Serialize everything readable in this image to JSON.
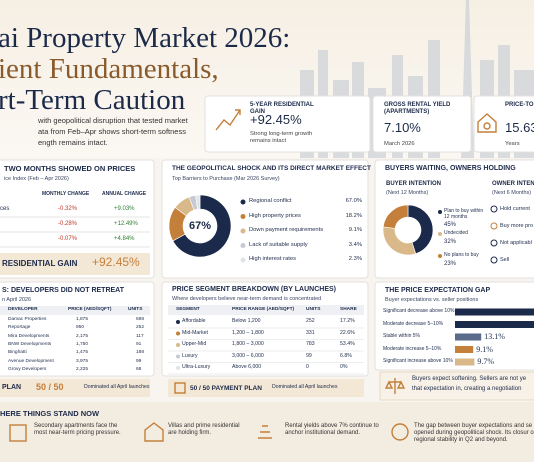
{
  "header": {
    "title_lines": [
      "ai Property Market 2026:",
      "ient Fundamentals,",
      "rt-Term Caution"
    ],
    "intro_lines": [
      "with geopolitical disruption that tested market",
      "ata from Feb–Apr shows short-term softness",
      "ength remains intact."
    ]
  },
  "stats": [
    {
      "label": "5-YEAR RESIDENTIAL GAIN",
      "value": "+92.45%",
      "note": "Strong long-term growth remains intact"
    },
    {
      "label": "GROSS RENTAL YIELD (APARTMENTS)",
      "value": "7.10%",
      "note": "March 2026"
    },
    {
      "label": "PRICE-TO",
      "value": "15.63",
      "note": "Years"
    }
  ],
  "price_panel": {
    "title": "TWO MONTHS SHOWED ON PRICES",
    "subtitle": "ice Index (Feb – Apr 2026)",
    "columns": [
      "MONTHLY CHANGE",
      "ANNUAL CHANGE"
    ],
    "rows": [
      {
        "label": "ces",
        "monthly": "-0.32%",
        "annual": "+9.03%"
      },
      {
        "monthly": "-0.28%",
        "annual": "+12.49%"
      },
      {
        "monthly": "-0.07%",
        "annual": "+4.84%"
      }
    ]
  },
  "gain": {
    "label": "RESIDENTIAL GAIN",
    "value": "+92.45%"
  },
  "barriers": {
    "title": "THE GEOPOLITICAL SHOCK AND ITS DIRECT MARKET EFFECT",
    "subtitle": "Top Barriers to Purchase (Mar 2026 Survey)",
    "center": "67%",
    "items": [
      {
        "label": "Regional conflict",
        "value": "67.0%"
      },
      {
        "label": "High property prices",
        "value": "18.2%"
      },
      {
        "label": "Down payment requirements",
        "value": "9.1%"
      },
      {
        "label": "Lack of suitable supply",
        "value": "3.4%"
      },
      {
        "label": "High interest rates",
        "value": "2.3%"
      }
    ]
  },
  "buyers": {
    "title": "BUYERS WAITING, OWNERS HOLDING",
    "buyer": {
      "title": "BUYER INTENTION",
      "subtitle": "(Next 12 Months)",
      "items": [
        {
          "label": "Plan to buy within 12 months",
          "value": "45%"
        },
        {
          "label": "Undecided",
          "value": "32%"
        },
        {
          "label": "No plans to buy",
          "value": "23%"
        }
      ]
    },
    "owner": {
      "title": "OWNER INTENT",
      "subtitle": "(Next 6 Months)",
      "items": [
        "Hold current",
        "Buy more pro",
        "Not applicabl",
        "Sell"
      ]
    }
  },
  "developers": {
    "title": "S: DEVELOPERS DID NOT RETREAT",
    "subtitle": "n April 2026",
    "columns": [
      "DEVELOPER",
      "PRICE (AED/SQFT)",
      "UNITS"
    ],
    "rows": [
      [
        "Damac Properties",
        "1,875",
        "598"
      ],
      [
        "Reportage",
        "950",
        "252"
      ],
      [
        "Mira Developments",
        "2,175",
        "117"
      ],
      [
        "BNW Developments",
        "1,750",
        "91"
      ],
      [
        "Binghatti",
        "1,475",
        "188"
      ],
      [
        "Avenue Development",
        "3,975",
        "99"
      ],
      [
        "Grovy Developers",
        "2,225",
        "68"
      ]
    ],
    "plan": {
      "label": "PLAN",
      "value": "50 / 50",
      "note": "Dominated all April launches"
    }
  },
  "segments": {
    "title": "PRICE SEGMENT BREAKDOWN (BY LAUNCHES)",
    "subtitle": "Where developers believe near-term demand is concentrated",
    "columns": [
      "SEGMENT",
      "PRICE RANGE (AED/SQFT)",
      "UNITS",
      "SHARE"
    ],
    "rows": [
      [
        "Affordable",
        "Below 1,200",
        "252",
        "17.2%"
      ],
      [
        "Mid-Market",
        "1,200 – 1,800",
        "331",
        "22.6%"
      ],
      [
        "Upper-Mid",
        "1,800 – 3,000",
        "783",
        "53.4%"
      ],
      [
        "Luxury",
        "3,000 – 6,000",
        "99",
        "6.8%"
      ],
      [
        "Ultra-Luxury",
        "Above 6,000",
        "0",
        "0%"
      ]
    ],
    "plan": {
      "label": "50 / 50 PAYMENT PLAN",
      "note": "Dominated all April launches"
    }
  },
  "expectation": {
    "title": "THE PRICE EXPECTATION GAP",
    "subtitle": "Buyer expectations vs. seller positions",
    "bars": [
      {
        "label": "Significant decrease above 10%",
        "value": 48
      },
      {
        "label": "Moderate decrease 5–10%",
        "value": 44
      },
      {
        "label": "Stable within 5%",
        "value": 13.1,
        "value_label": "13.1%"
      },
      {
        "label": "Moderate increase 5–10%",
        "value": 9.1,
        "value_label": "9.1%"
      },
      {
        "label": "Significant increase above 10%",
        "value": 9.7,
        "value_label": "9.7%"
      }
    ],
    "note_lines": [
      "Buyers expect softening. Sellers are not ye",
      "that expectation in, creating a negotiation"
    ]
  },
  "summary": {
    "title": "HERE THINGS STAND NOW",
    "items": [
      "Secondary apartments face the most near-term pricing pressure.",
      "Villas and prime residential are holding firm.",
      "Rental yields above 7% continue to anchor institutional demand.",
      "The gap between buyer expectations and se opened during geopolitical shock. Its closur on regional stability in Q2 and beyond."
    ]
  }
}
